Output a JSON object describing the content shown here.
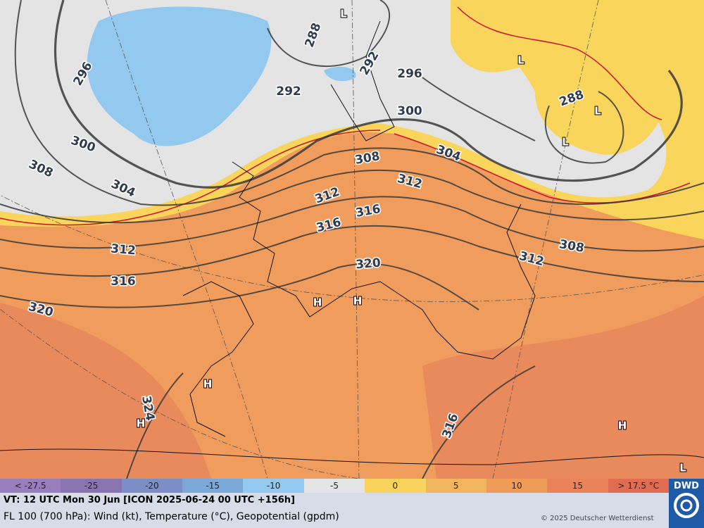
{
  "map": {
    "contour_labels": [
      "296",
      "288",
      "292",
      "292",
      "296",
      "300",
      "288",
      "300",
      "308",
      "304",
      "304",
      "308",
      "312",
      "312",
      "316",
      "316",
      "312",
      "316",
      "308",
      "312",
      "320",
      "320",
      "324",
      "316"
    ],
    "pressure_centers": [
      "L",
      "L",
      "L",
      "L",
      "H",
      "H",
      "H",
      "H",
      "H",
      "L"
    ]
  },
  "legend": [
    "< -27.5",
    "-25",
    "-20",
    "-15",
    "-10",
    "-5",
    "0",
    "5",
    "10",
    "15",
    "> 17.5 °C"
  ],
  "legend_colors": [
    "#9a7dbd",
    "#8a74b0",
    "#7c8ec6",
    "#7aa8d8",
    "#93c9ee",
    "#e4e4e4",
    "#f8d45c",
    "#f2b45c",
    "#ee9c58",
    "#ea8458",
    "#e26c52"
  ],
  "footer": {
    "valid_time": "VT: 12 UTC Mon  30 Jun [ICON 2025-06-24 00 UTC +156h]",
    "description": "FL 100 (700 hPa): Wind (kt), Temperature (°C), Geopotential (gpdm)",
    "copyright": "© 2025 Deutscher Wetterdienst",
    "logo": "DWD"
  }
}
